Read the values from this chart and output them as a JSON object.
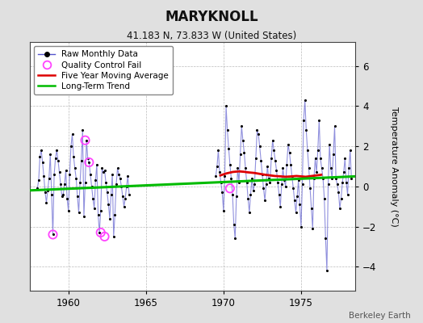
{
  "title": "MARYKNOLL",
  "subtitle": "41.183 N, 73.833 W (United States)",
  "ylabel": "Temperature Anomaly (°C)",
  "attribution": "Berkeley Earth",
  "xlim": [
    1957.5,
    1978.5
  ],
  "ylim": [
    -5.2,
    7.2
  ],
  "yticks": [
    -4,
    -2,
    0,
    2,
    4,
    6
  ],
  "xticks": [
    1960,
    1965,
    1970,
    1975
  ],
  "background_color": "#e0e0e0",
  "plot_bg_color": "#ffffff",
  "raw_color": "#5555cc",
  "dot_color": "#000000",
  "qc_color": "#ff44ff",
  "ma_color": "#dd0000",
  "trend_color": "#00bb00",
  "seg1_x": [
    1958.0,
    1958.083,
    1958.167,
    1958.25,
    1958.333,
    1958.417,
    1958.5,
    1958.583,
    1958.667,
    1958.75,
    1958.833,
    1958.917,
    1959.0,
    1959.083,
    1959.167,
    1959.25,
    1959.333,
    1959.417,
    1959.5,
    1959.583,
    1959.667,
    1959.75,
    1959.833,
    1959.917,
    1960.0,
    1960.083,
    1960.167,
    1960.25,
    1960.333,
    1960.417,
    1960.5,
    1960.583,
    1960.667,
    1960.75,
    1960.833,
    1960.917,
    1961.0,
    1961.083,
    1961.167,
    1961.25,
    1961.333,
    1961.417,
    1961.5,
    1961.583,
    1961.667,
    1961.75,
    1961.833,
    1961.917,
    1962.0,
    1962.083,
    1962.167,
    1962.25,
    1962.333,
    1962.417,
    1962.5,
    1962.583,
    1962.667,
    1962.75,
    1962.833,
    1962.917,
    1963.0,
    1963.083,
    1963.167,
    1963.25,
    1963.333,
    1963.417,
    1963.5,
    1963.583,
    1963.667,
    1963.75,
    1963.833,
    1963.917
  ],
  "seg1_y": [
    -0.1,
    0.3,
    1.5,
    1.8,
    1.2,
    0.5,
    -0.3,
    -0.8,
    -0.2,
    0.4,
    1.6,
    -0.4,
    -2.4,
    0.6,
    1.4,
    1.8,
    1.3,
    0.7,
    0.1,
    -0.5,
    -0.4,
    0.1,
    0.8,
    -0.6,
    -1.2,
    0.6,
    2.0,
    2.6,
    1.5,
    0.9,
    0.4,
    -0.5,
    -1.3,
    0.2,
    1.3,
    2.8,
    -1.5,
    0.2,
    2.3,
    1.4,
    1.2,
    0.6,
    0.0,
    -0.6,
    -1.1,
    0.3,
    1.1,
    -1.4,
    -2.3,
    -1.2,
    0.9,
    0.7,
    0.8,
    0.2,
    -0.3,
    -0.9,
    -1.6,
    -0.4,
    0.6,
    -2.5,
    -1.4,
    0.1,
    0.9,
    0.6,
    0.4,
    0.0,
    -0.5,
    -1.0,
    -0.6,
    0.0,
    0.5,
    -0.4
  ],
  "seg2_x": [
    1969.5,
    1969.583,
    1969.667,
    1969.75,
    1969.833,
    1969.917,
    1970.0,
    1970.083,
    1970.167,
    1970.25,
    1970.333,
    1970.417,
    1970.5,
    1970.583,
    1970.667,
    1970.75,
    1970.833,
    1970.917,
    1971.0,
    1971.083,
    1971.167,
    1971.25,
    1971.333,
    1971.417,
    1971.5,
    1971.583,
    1971.667,
    1971.75,
    1971.833,
    1971.917,
    1972.0,
    1972.083,
    1972.167,
    1972.25,
    1972.333,
    1972.417,
    1972.5,
    1972.583,
    1972.667,
    1972.75,
    1972.833,
    1972.917,
    1973.0,
    1973.083,
    1973.167,
    1973.25,
    1973.333,
    1973.417,
    1973.5,
    1973.583,
    1973.667,
    1973.75,
    1973.833,
    1973.917,
    1974.0,
    1974.083,
    1974.167,
    1974.25,
    1974.333,
    1974.417,
    1974.5,
    1974.583,
    1974.667,
    1974.75,
    1974.833,
    1974.917,
    1975.0,
    1975.083,
    1975.167,
    1975.25,
    1975.333,
    1975.417,
    1975.5,
    1975.583,
    1975.667,
    1975.75,
    1975.833,
    1975.917,
    1976.0,
    1976.083,
    1976.167,
    1976.25,
    1976.333,
    1976.417,
    1976.5,
    1976.583,
    1976.667,
    1976.75,
    1976.833,
    1976.917,
    1977.0,
    1977.083,
    1977.167,
    1977.25,
    1977.333,
    1977.417,
    1977.5,
    1977.583,
    1977.667,
    1977.75,
    1977.833,
    1977.917,
    1978.0,
    1978.083,
    1978.167,
    1978.25
  ],
  "seg2_y": [
    0.5,
    1.0,
    1.8,
    0.7,
    0.2,
    -0.3,
    -1.2,
    0.5,
    4.0,
    2.8,
    1.9,
    1.1,
    0.4,
    -0.4,
    -1.9,
    -2.6,
    -0.5,
    0.9,
    0.2,
    1.6,
    3.0,
    2.3,
    1.7,
    0.9,
    0.2,
    -0.6,
    -1.3,
    -0.4,
    0.4,
    -0.2,
    0.1,
    1.4,
    2.8,
    2.6,
    2.0,
    1.3,
    0.6,
    -0.1,
    -0.7,
    0.1,
    1.0,
    0.4,
    0.2,
    1.4,
    2.3,
    1.8,
    1.3,
    0.8,
    0.2,
    -0.4,
    -1.0,
    0.1,
    0.9,
    0.3,
    0.0,
    1.1,
    2.1,
    1.7,
    1.1,
    0.5,
    -0.1,
    -0.7,
    -1.3,
    -0.5,
    0.3,
    -0.9,
    -2.0,
    0.1,
    3.3,
    4.3,
    2.8,
    1.8,
    0.9,
    -0.1,
    -1.1,
    -2.1,
    0.4,
    1.4,
    0.7,
    1.8,
    3.3,
    1.4,
    0.9,
    0.4,
    -0.6,
    -2.6,
    -4.2,
    0.1,
    2.1,
    0.9,
    0.4,
    1.6,
    3.0,
    0.4,
    0.1,
    -0.3,
    -1.1,
    -0.6,
    0.2,
    0.7,
    1.4,
    0.2,
    -0.4,
    0.9,
    1.8,
    0.4
  ],
  "qc_fail_x": [
    1959.0,
    1961.083,
    1961.333,
    1962.083,
    1962.333,
    1970.417
  ],
  "qc_fail_y": [
    -2.4,
    2.3,
    1.2,
    -2.3,
    -2.5,
    -0.1
  ],
  "ma_x": [
    1969.8,
    1970.2,
    1970.6,
    1971.0,
    1971.3,
    1971.6,
    1972.0,
    1972.3,
    1972.7,
    1973.0,
    1973.3,
    1973.7,
    1974.0,
    1974.4,
    1974.7,
    1975.0,
    1975.3,
    1975.7,
    1976.0,
    1976.3
  ],
  "ma_y": [
    0.55,
    0.65,
    0.72,
    0.75,
    0.73,
    0.7,
    0.67,
    0.63,
    0.58,
    0.55,
    0.52,
    0.5,
    0.48,
    0.5,
    0.52,
    0.5,
    0.48,
    0.52,
    0.55,
    0.58
  ],
  "trend_x": [
    1957.5,
    1978.5
  ],
  "trend_y": [
    -0.2,
    0.5
  ]
}
